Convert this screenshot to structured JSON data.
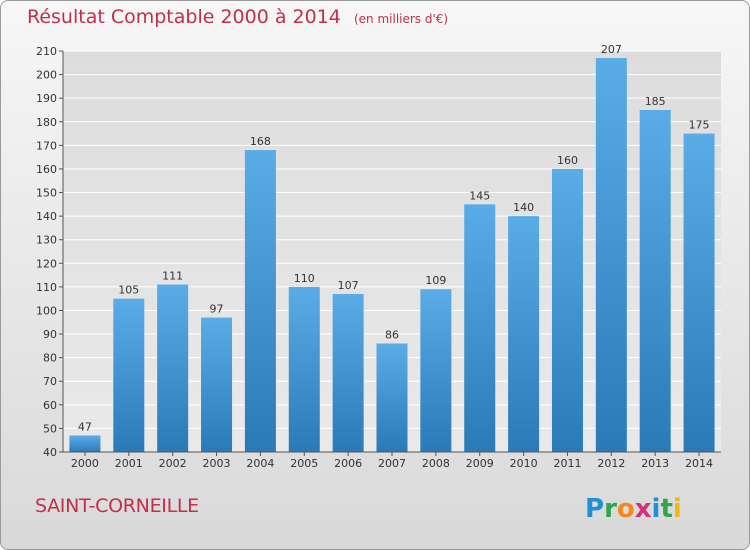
{
  "title": "Résultat Comptable 2000 à 2014",
  "subtitle": "(en milliers d'€)",
  "commune": "SAINT-CORNEILLE",
  "logo": "Proxiti",
  "colors": {
    "title": "#c0304a",
    "bar_top": "#5aace6",
    "bar_bottom": "#2a7ab8",
    "grid": "#ffffff",
    "axis": "#555555"
  },
  "chart_data": {
    "type": "bar",
    "title": "Résultat Comptable 2000 à 2014",
    "subtitle": "(en milliers d'€)",
    "xlabel": "",
    "ylabel": "",
    "categories": [
      "2000",
      "2001",
      "2002",
      "2003",
      "2004",
      "2005",
      "2006",
      "2007",
      "2008",
      "2009",
      "2010",
      "2011",
      "2012",
      "2013",
      "2014"
    ],
    "values": [
      47,
      105,
      111,
      97,
      168,
      110,
      107,
      86,
      109,
      145,
      140,
      160,
      207,
      185,
      175
    ],
    "ylim": [
      40,
      210
    ],
    "yticks": [
      40,
      50,
      60,
      70,
      80,
      90,
      100,
      110,
      120,
      130,
      140,
      150,
      160,
      170,
      180,
      190,
      200,
      210
    ],
    "grid": true,
    "data_labels": true,
    "legend": "none"
  }
}
